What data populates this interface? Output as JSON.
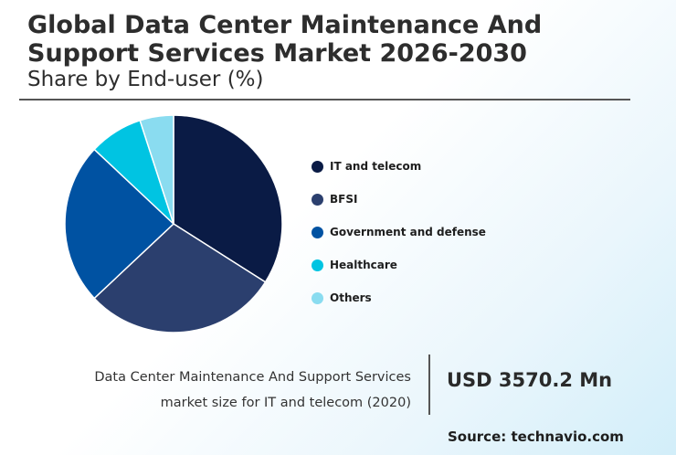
{
  "title": "Global Data Center Maintenance And Support Services Market 2026-2030",
  "subtitle": "Share by End-user (%)",
  "chart_data": {
    "type": "pie",
    "slices": [
      {
        "label": "IT and telecom",
        "value": 34,
        "color": "#0a1b45"
      },
      {
        "label": "BFSI",
        "value": 29,
        "color": "#2b3f6e"
      },
      {
        "label": "Government and defense",
        "value": 24,
        "color": "#0052a2"
      },
      {
        "label": "Healthcare",
        "value": 8,
        "color": "#00c4e2"
      },
      {
        "label": "Others",
        "value": 5,
        "color": "#8adcf0"
      }
    ]
  },
  "footer": {
    "description_line1": "Data Center Maintenance And Support Services",
    "description_line2": "market size for IT and telecom (2020)",
    "value": "USD 3570.2 Mn",
    "source": "Source: technavio.com"
  }
}
